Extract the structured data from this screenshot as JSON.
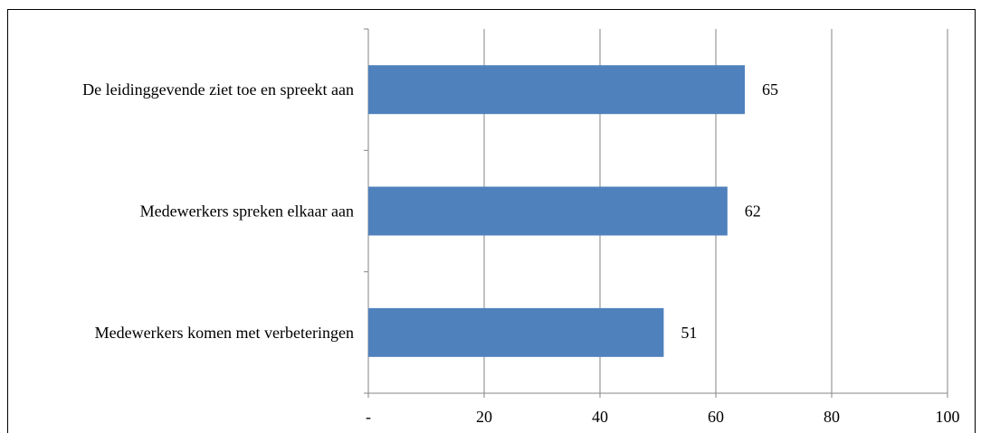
{
  "title": "",
  "chart_data": {
    "type": "bar",
    "orientation": "horizontal",
    "categories": [
      "De leidinggevende ziet toe en spreekt aan",
      "Medewerkers spreken elkaar aan",
      "Medewerkers komen met verbeteringen"
    ],
    "values": [
      65,
      62,
      51
    ],
    "value_labels": [
      "65",
      "62",
      "51"
    ],
    "xlim": [
      0,
      100
    ],
    "x_ticks": [
      0,
      20,
      40,
      60,
      80,
      100
    ],
    "x_tick_labels": [
      "-",
      "20",
      "40",
      "60",
      "80",
      "100"
    ],
    "xlabel": "",
    "ylabel": "",
    "grid": "vertical",
    "bar_color": "#4f81bd"
  }
}
